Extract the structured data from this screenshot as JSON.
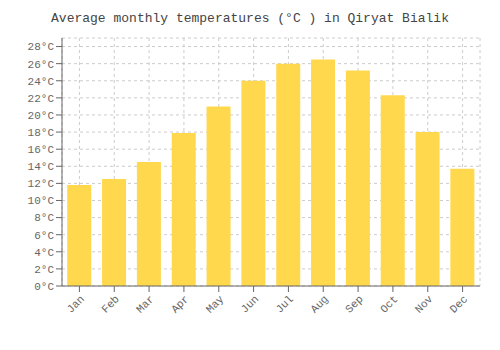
{
  "chart_data": {
    "type": "bar",
    "title": "Average monthly temperatures (°C ) in Qiryat Bialik",
    "categories": [
      "Jan",
      "Feb",
      "Mar",
      "Apr",
      "May",
      "Jun",
      "Jul",
      "Aug",
      "Sep",
      "Oct",
      "Nov",
      "Dec"
    ],
    "values": [
      11.8,
      12.5,
      14.5,
      17.9,
      21.0,
      24.0,
      26.0,
      26.5,
      25.2,
      22.3,
      18.0,
      13.7
    ],
    "color": "#FFD84D",
    "ylim": [
      0,
      29
    ],
    "yticks": [
      {
        "value": 0,
        "label": "0°C"
      },
      {
        "value": 2,
        "label": "2°C"
      },
      {
        "value": 4,
        "label": "4°C"
      },
      {
        "value": 6,
        "label": "6°C"
      },
      {
        "value": 8,
        "label": "8°C"
      },
      {
        "value": 10,
        "label": "10°C"
      },
      {
        "value": 12,
        "label": "12°C"
      },
      {
        "value": 14,
        "label": "14°C"
      },
      {
        "value": 16,
        "label": "16°C"
      },
      {
        "value": 18,
        "label": "18°C"
      },
      {
        "value": 20,
        "label": "20°C"
      },
      {
        "value": 22,
        "label": "22°C"
      },
      {
        "value": 24,
        "label": "24°C"
      },
      {
        "value": 26,
        "label": "26°C"
      },
      {
        "value": 28,
        "label": "28°C"
      }
    ],
    "grid": true
  }
}
